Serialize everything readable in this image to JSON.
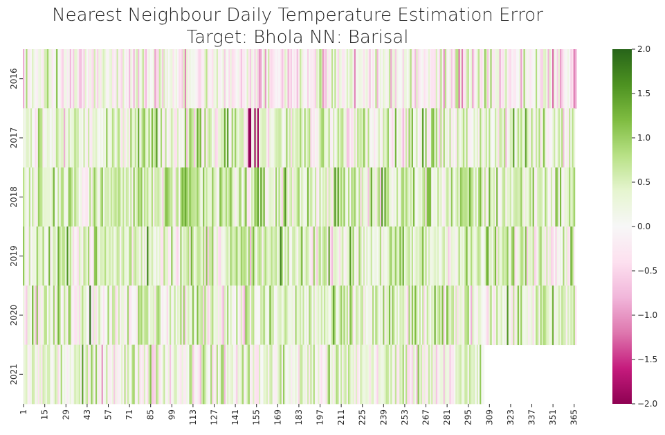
{
  "chart_data": {
    "type": "heatmap",
    "title": "Nearest Neighbour Daily Temperature Estimation Error",
    "subtitle": "Target: Bhola NN: Barisal",
    "xlabel": "",
    "ylabel": "",
    "rows": [
      "2016",
      "2017",
      "2018",
      "2019",
      "2020",
      "2021"
    ],
    "days_in_row": [
      366,
      365,
      365,
      365,
      366,
      305
    ],
    "x_ticks": [
      "1",
      "15",
      "29",
      "43",
      "57",
      "71",
      "85",
      "99",
      "113",
      "127",
      "141",
      "155",
      "169",
      "183",
      "197",
      "211",
      "225",
      "239",
      "253",
      "267",
      "281",
      "295",
      "309",
      "323",
      "337",
      "351",
      "365"
    ],
    "colorbar": {
      "min": -2.0,
      "max": 2.0,
      "ticks": [
        "2.0",
        "1.5",
        "1.0",
        "0.5",
        "0.0",
        "−0.5",
        "−1.0",
        "−1.5",
        "−2.0"
      ],
      "tick_values": [
        2.0,
        1.5,
        1.0,
        0.5,
        0.0,
        -0.5,
        -1.0,
        -1.5,
        -2.0
      ],
      "colormap": "PiYG",
      "colors": [
        "#8e0152",
        "#c51b7d",
        "#de77ae",
        "#f1b6da",
        "#fde0ef",
        "#f7f7f7",
        "#e6f5d0",
        "#b8e186",
        "#7fbc41",
        "#4d9221",
        "#276419"
      ]
    },
    "row_bias": [
      -0.05,
      0.35,
      0.45,
      0.4,
      0.3,
      0.2
    ],
    "notable_anomalies": [
      {
        "row": "2017",
        "day_range": [
          150,
          158
        ],
        "value": -1.9
      },
      {
        "row": "2020",
        "day": 45,
        "value": 1.9
      },
      {
        "row": "2019",
        "day": 83,
        "value": 1.7
      }
    ]
  }
}
